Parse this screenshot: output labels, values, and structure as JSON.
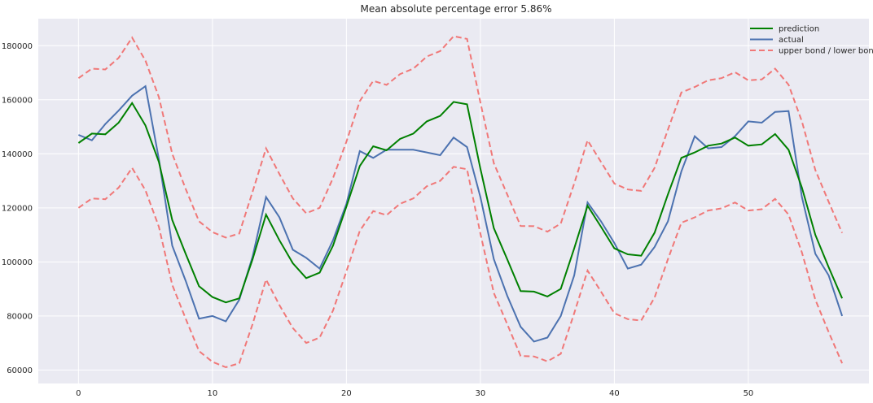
{
  "chart_data": {
    "type": "line",
    "title": "Mean absolute percentage error 5.86%",
    "xlabel": "",
    "ylabel": "",
    "xlim": [
      -3,
      59
    ],
    "ylim": [
      55000,
      190000
    ],
    "x_ticks": [
      0,
      10,
      20,
      30,
      40,
      50
    ],
    "y_ticks": [
      60000,
      80000,
      100000,
      120000,
      140000,
      160000,
      180000
    ],
    "grid": true,
    "legend_position": "top-right",
    "x": [
      0,
      1,
      2,
      3,
      4,
      5,
      6,
      7,
      8,
      9,
      10,
      11,
      12,
      13,
      14,
      15,
      16,
      17,
      18,
      19,
      20,
      21,
      22,
      23,
      24,
      25,
      26,
      27,
      28,
      29,
      30,
      31,
      32,
      33,
      34,
      35,
      36,
      37,
      38,
      39,
      40,
      41,
      42,
      43,
      44,
      45,
      46,
      47,
      48,
      49,
      50,
      51,
      52,
      53,
      54,
      55,
      56,
      57
    ],
    "series": [
      {
        "name": "prediction",
        "color": "#008000",
        "style": "solid",
        "values": [
          144000,
          147500,
          147200,
          151500,
          158800,
          150500,
          137000,
          115500,
          103000,
          91000,
          87000,
          85000,
          86500,
          101000,
          117500,
          108000,
          99500,
          94000,
          96000,
          106000,
          120500,
          135500,
          142800,
          141300,
          145500,
          147500,
          152000,
          154000,
          159200,
          158300,
          134500,
          112500,
          101000,
          89200,
          89000,
          87200,
          90000,
          105000,
          120800,
          113000,
          105000,
          102800,
          102300,
          110800,
          125000,
          138500,
          140500,
          143000,
          143800,
          146000,
          143000,
          143500,
          147300,
          141500,
          127500,
          110000,
          98000,
          86500
        ]
      },
      {
        "name": "actual",
        "color": "#4c72b0",
        "style": "solid",
        "values": [
          147000,
          145000,
          151000,
          156000,
          161500,
          165000,
          138000,
          106000,
          93000,
          79000,
          80000,
          78000,
          86000,
          102000,
          124000,
          116500,
          104500,
          101500,
          97500,
          108000,
          121500,
          141000,
          138500,
          141500,
          141500,
          141500,
          140500,
          139500,
          146000,
          142500,
          124000,
          101000,
          87500,
          76000,
          70500,
          72000,
          80000,
          95000,
          122000,
          115000,
          107000,
          97500,
          99000,
          105500,
          115000,
          133500,
          146500,
          142000,
          142500,
          146500,
          152000,
          151500,
          155500,
          155800,
          124000,
          103000,
          95000,
          80000
        ]
      },
      {
        "name": "upper bond / lower bond",
        "color": "#f07878",
        "style": "dashed",
        "upper": [
          168000,
          171500,
          171200,
          175500,
          183000,
          174500,
          161000,
          140000,
          127000,
          115000,
          111000,
          109000,
          110500,
          126000,
          142000,
          132500,
          123500,
          118000,
          120000,
          131000,
          144500,
          159500,
          167000,
          165500,
          169500,
          171500,
          176000,
          178000,
          183500,
          182500,
          159000,
          136500,
          125000,
          113300,
          113200,
          111200,
          114200,
          129000,
          145000,
          137000,
          129000,
          126800,
          126300,
          134800,
          149000,
          162700,
          164700,
          167200,
          168000,
          170200,
          167200,
          167500,
          171500,
          165600,
          152000,
          134000,
          122200,
          110700
        ],
        "lower": [
          120000,
          123500,
          123200,
          127500,
          134800,
          126500,
          113000,
          91500,
          79000,
          67000,
          63000,
          61000,
          62500,
          77000,
          93500,
          84000,
          75500,
          70000,
          72000,
          82000,
          96500,
          111500,
          118800,
          117300,
          121500,
          123500,
          128000,
          130000,
          135200,
          134300,
          110500,
          88500,
          77000,
          65200,
          65000,
          63200,
          66000,
          81000,
          96800,
          89000,
          81000,
          78800,
          78300,
          86800,
          101000,
          114500,
          116500,
          119000,
          119800,
          122000,
          119000,
          119500,
          123300,
          117500,
          103500,
          86000,
          74000,
          62500
        ]
      }
    ]
  }
}
